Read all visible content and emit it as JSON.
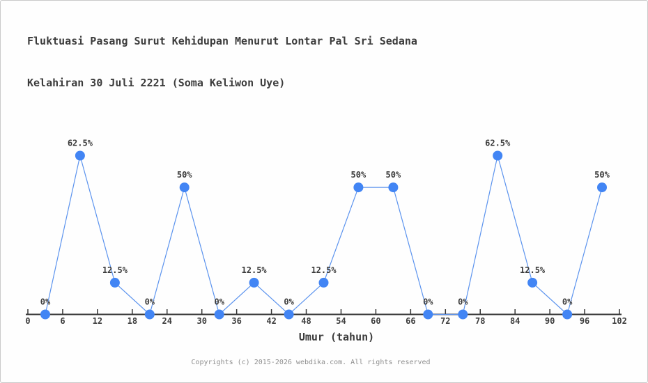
{
  "title": {
    "line1": "Fluktuasi Pasang Surut Kehidupan Menurut Lontar Pal Sri Sedana",
    "line2": "Kelahiran 30 Juli 2221 (Soma Keliwon Uye)"
  },
  "footer": "Copyrights (c) 2015-2026 webdika.com. All rights reserved",
  "chart_data": {
    "type": "line",
    "x": [
      3,
      9,
      15,
      21,
      27,
      33,
      39,
      45,
      51,
      57,
      63,
      69,
      75,
      81,
      87,
      93,
      99
    ],
    "values": [
      0,
      62.5,
      12.5,
      0,
      50,
      0,
      12.5,
      0,
      12.5,
      50,
      50,
      0,
      0,
      62.5,
      12.5,
      0,
      50
    ],
    "point_labels": [
      "0%",
      "62.5%",
      "12.5%",
      "0%",
      "50%",
      "0%",
      "12.5%",
      "0%",
      "12.5%",
      "50%",
      "50%",
      "0%",
      "0%",
      "62.5%",
      "12.5%",
      "0%",
      "50%"
    ],
    "xlabel": "Umur (tahun)",
    "ylabel": "",
    "x_ticks": [
      0,
      6,
      12,
      18,
      24,
      30,
      36,
      42,
      48,
      54,
      60,
      66,
      72,
      78,
      84,
      90,
      96,
      102
    ],
    "x_tick_labels": [
      "0",
      "6",
      "12",
      "18",
      "24",
      "30",
      "36",
      "42",
      "48",
      "54",
      "60",
      "66",
      "72",
      "78",
      "84",
      "90",
      "96",
      "102"
    ],
    "xlim": [
      0,
      102
    ],
    "ylim": [
      0,
      70
    ],
    "grid": false,
    "legend": null,
    "colors": {
      "line": "#5b93ee",
      "marker": "#4285f4",
      "axis": "#333333",
      "text": "#3c3c3c",
      "footer_text": "#8f8f8f"
    }
  }
}
